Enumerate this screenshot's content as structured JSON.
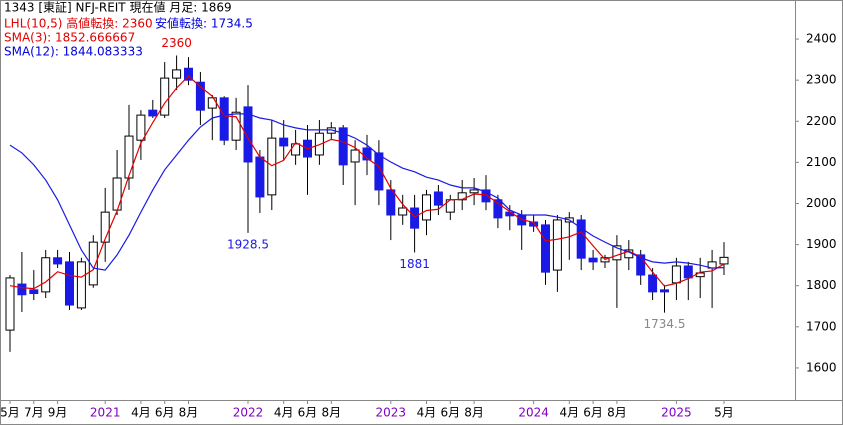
{
  "chart_data": {
    "type": "candlestick",
    "header": [
      "1343 [東証] NFJ-REIT 現在値 月足: 1869",
      "LHL(10,5) 高値転換: 2360",
      "安値転換: 1734.5",
      "SMA(3): 1852.666667",
      "SMA(12): 1844.083333"
    ],
    "header_colors": [
      "#000000",
      "#e00000",
      "#0000e0",
      "#e00000",
      "#0000e0"
    ],
    "categories": [
      "5月",
      null,
      "7月",
      null,
      "9月",
      null,
      null,
      null,
      "2021",
      null,
      null,
      "4月",
      null,
      "6月",
      null,
      "8月",
      null,
      null,
      null,
      null,
      "2022",
      null,
      null,
      "4月",
      null,
      "6月",
      null,
      "8月",
      null,
      null,
      null,
      null,
      "2023",
      null,
      null,
      "4月",
      null,
      "6月",
      null,
      "8月",
      null,
      null,
      null,
      null,
      "2024",
      null,
      null,
      "4月",
      null,
      "6月",
      null,
      "8月",
      null,
      null,
      null,
      null,
      "2025",
      null,
      null,
      null,
      "5月"
    ],
    "year_labels": [
      "2021",
      "2022",
      "2023",
      "2024",
      "2025"
    ],
    "year_color": "#8000c0",
    "open": [
      1692,
      1804,
      1790,
      1785,
      1868,
      1858,
      1746,
      1802,
      1906,
      1984,
      2062,
      2154,
      2227,
      2215,
      2305,
      2329,
      2295,
      2232,
      2257,
      2154,
      2235,
      2113,
      2021,
      2159,
      2118,
      2154,
      2118,
      2171,
      2184,
      2101,
      2135,
      2123,
      2033,
      1972,
      1989,
      1960,
      2028,
      1979,
      2009,
      2026,
      2033,
      2009,
      1979,
      1972,
      1955,
      1948,
      1838,
      1955,
      1960,
      1867,
      1858,
      1863,
      1868,
      1875,
      1826,
      1790,
      1807,
      1848,
      1822,
      1843,
      1853
    ],
    "high": [
      1826,
      1882,
      1838,
      1887,
      1887,
      1882,
      1868,
      1923,
      2038,
      2130,
      2240,
      2227,
      2252,
      2344,
      2360,
      2356,
      2320,
      2264,
      2261,
      2257,
      2288,
      2130,
      2203,
      2203,
      2179,
      2191,
      2203,
      2198,
      2191,
      2154,
      2167,
      2154,
      2057,
      2021,
      2021,
      2033,
      2045,
      2021,
      2057,
      2062,
      2069,
      2021,
      1996,
      1984,
      1972,
      1960,
      1972,
      1979,
      1972,
      1887,
      1875,
      1923,
      1911,
      1887,
      1843,
      1802,
      1868,
      1858,
      1868,
      1887,
      1906
    ],
    "low": [
      1639,
      1736,
      1765,
      1770,
      1843,
      1741,
      1741,
      1795,
      1858,
      1972,
      2033,
      2106,
      2208,
      2208,
      2276,
      2288,
      2191,
      2154,
      2142,
      2130,
      1928.5,
      1977,
      1984,
      2106,
      2094,
      2021,
      2094,
      2154,
      2045,
      1996,
      2069,
      1996,
      1911,
      1948,
      1881,
      1923,
      1972,
      1960,
      1984,
      1996,
      1984,
      1940,
      1935,
      1887,
      1931,
      1802,
      1785,
      1863,
      1838,
      1838,
      1843,
      1746,
      1838,
      1802,
      1765,
      1734.5,
      1765,
      1765,
      1770,
      1746,
      1826
    ],
    "close": [
      1819,
      1778,
      1781,
      1868,
      1853,
      1753,
      1858,
      1906,
      1979,
      2062,
      2164,
      2215,
      2213,
      2305,
      2325,
      2300,
      2227,
      2257,
      2154,
      2222,
      2101,
      2016,
      2159,
      2140,
      2145,
      2113,
      2171,
      2184,
      2094,
      2130,
      2106,
      2033,
      1972,
      1989,
      1940,
      2021,
      1996,
      2009,
      2026,
      2033,
      2004,
      1965,
      1970,
      1948,
      1945,
      1833,
      1960,
      1965,
      1867,
      1858,
      1868,
      1897,
      1887,
      1826,
      1785,
      1785,
      1848,
      1819,
      1831,
      1858,
      1869
    ],
    "up_color": "#ffffff",
    "down_color": "#1a1ae6",
    "wick_color": "#000000",
    "series": [
      {
        "name": "SMA(3)",
        "color": "#e00000",
        "values": [
          1800,
          1795,
          1793,
          1809,
          1834,
          1825,
          1821,
          1839,
          1914,
          1982,
          2068,
          2147,
          2197,
          2244,
          2281,
          2310,
          2284,
          2261,
          2213,
          2211,
          2159,
          2113,
          2092,
          2105,
          2148,
          2133,
          2143,
          2156,
          2150,
          2136,
          2110,
          2090,
          2037,
          1998,
          1967,
          1983,
          1986,
          2009,
          2010,
          2023,
          2021,
          2001,
          1980,
          1961,
          1954,
          1909,
          1913,
          1919,
          1931,
          1897,
          1864,
          1874,
          1884,
          1870,
          1833,
          1799,
          1806,
          1817,
          1833,
          1836,
          1852.666667
        ]
      },
      {
        "name": "SMA(12)",
        "color": "#1a1ae6",
        "values": [
          2142,
          2123,
          2094,
          2057,
          2009,
          1948,
          1887,
          1843,
          1838,
          1875,
          1923,
          1979,
          2033,
          2082,
          2118,
          2154,
          2186,
          2208,
          2215,
          2218,
          2218,
          2208,
          2203,
          2191,
          2184,
          2179,
          2179,
          2179,
          2171,
          2159,
          2142,
          2118,
          2101,
          2086,
          2077,
          2064,
          2057,
          2045,
          2038,
          2038,
          2028,
          2013,
          1984,
          1972,
          1972,
          1972,
          1967,
          1960,
          1940,
          1921,
          1906,
          1892,
          1882,
          1868,
          1858,
          1855,
          1858,
          1855,
          1850,
          1843,
          1844.083333
        ]
      }
    ],
    "annotations": [
      {
        "value": 2360,
        "at": "high",
        "color": "#e00000"
      },
      {
        "value": 1928.5,
        "at": "low",
        "color": "#1a1ae6"
      },
      {
        "value": 1881,
        "at": "low",
        "color": "#1a1ae6"
      },
      {
        "value": 1734.5,
        "at": "low",
        "color": "#888888"
      }
    ],
    "ylim": [
      1522,
      2495
    ],
    "yticks": [
      1600,
      1700,
      1800,
      1900,
      2000,
      2100,
      2200,
      2300,
      2400
    ]
  }
}
